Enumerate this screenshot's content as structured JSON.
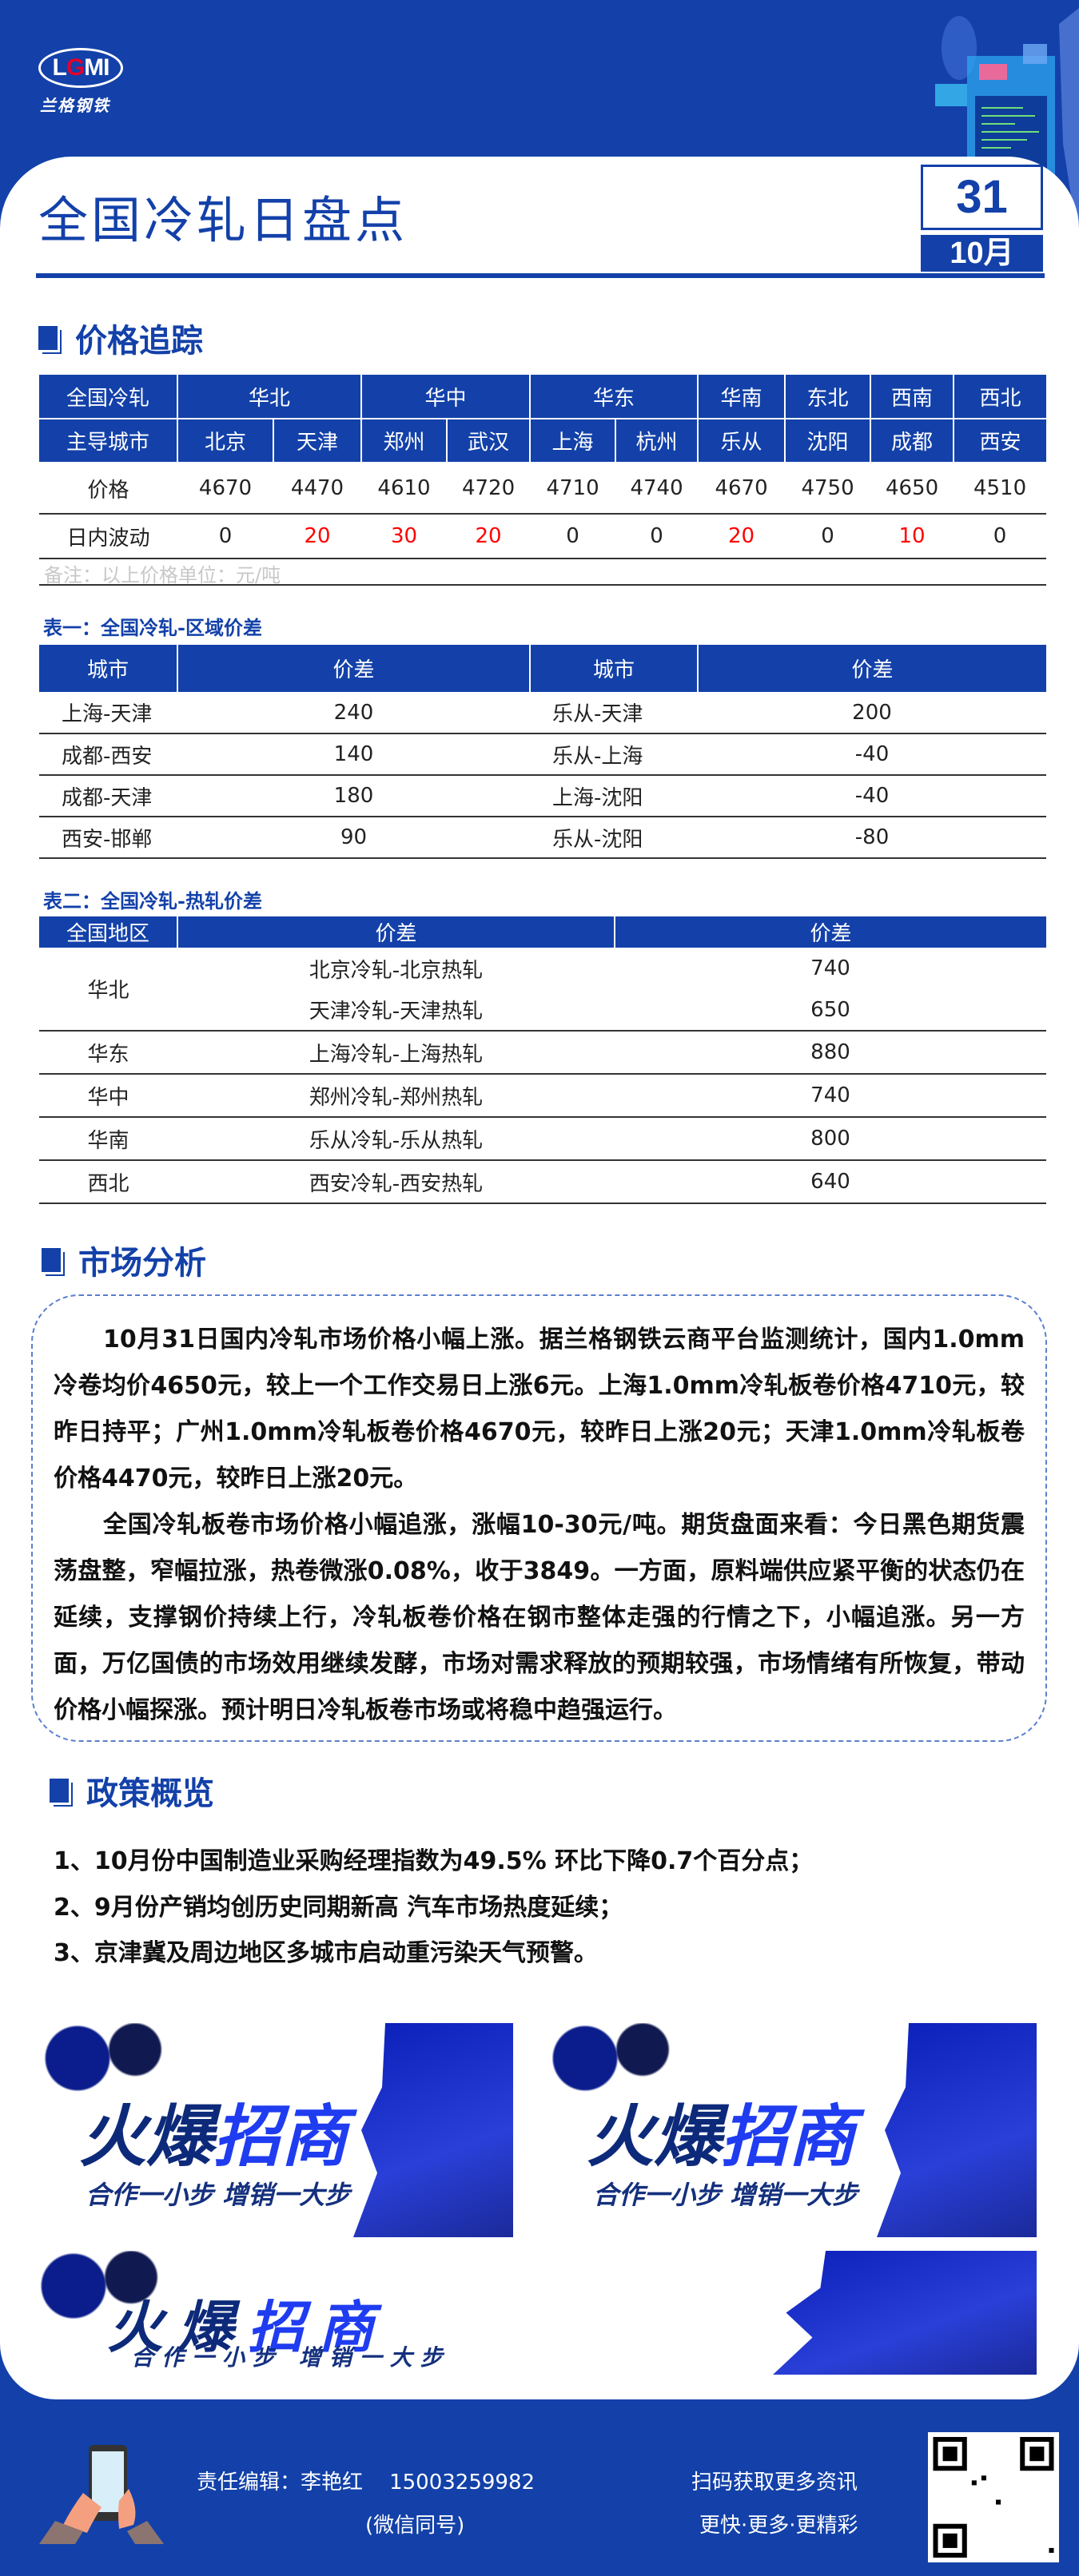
{
  "brand": {
    "logo_text": "LGMI",
    "logo_cn": "兰格钢铁"
  },
  "header": {
    "title": "全国冷轧日盘点",
    "day": "31",
    "month": "10月"
  },
  "colors": {
    "primary": "#1341a9",
    "bar_positive": "#d13a36",
    "bar_negative": "#00b050",
    "rise_text": "#ff0000"
  },
  "price_tracking": {
    "heading": "价格追踪",
    "row1_label": "全国冷轧",
    "regions": [
      {
        "name": "华北",
        "span": 2
      },
      {
        "name": "华中",
        "span": 2
      },
      {
        "name": "华东",
        "span": 2
      },
      {
        "name": "华南",
        "span": 1
      },
      {
        "name": "东北",
        "span": 1
      },
      {
        "name": "西南",
        "span": 1
      },
      {
        "name": "西北",
        "span": 1
      }
    ],
    "row2_label": "主导城市",
    "cities": [
      "北京",
      "天津",
      "郑州",
      "武汉",
      "上海",
      "杭州",
      "乐从",
      "沈阳",
      "成都",
      "西安"
    ],
    "price_label": "价格",
    "prices": [
      "4670",
      "4470",
      "4610",
      "4720",
      "4710",
      "4740",
      "4670",
      "4750",
      "4650",
      "4510"
    ],
    "change_label": "日内波动",
    "changes": [
      "0",
      "20",
      "30",
      "20",
      "0",
      "0",
      "20",
      "0",
      "10",
      "0"
    ],
    "note": "备注：以上价格单位：元/吨"
  },
  "table1": {
    "caption": "表一：全国冷轧-区域价差",
    "headers": [
      "城市",
      "价差",
      "城市",
      "价差"
    ],
    "left": [
      {
        "pair": "上海-天津",
        "value": 240
      },
      {
        "pair": "成都-西安",
        "value": 140
      },
      {
        "pair": "成都-天津",
        "value": 180
      },
      {
        "pair": "西安-邯郸",
        "value": 90
      }
    ],
    "right": [
      {
        "pair": "乐从-天津",
        "value": 200
      },
      {
        "pair": "乐从-上海",
        "value": -40
      },
      {
        "pair": "上海-沈阳",
        "value": -40
      },
      {
        "pair": "乐从-沈阳",
        "value": -80
      }
    ]
  },
  "table2": {
    "caption": "表二：全国冷轧-热轧价差",
    "headers": [
      "全国地区",
      "价差",
      "价差"
    ],
    "groups": [
      {
        "region": "华北",
        "rows": [
          {
            "item": "北京冷轧-北京热轧",
            "value": 740
          },
          {
            "item": "天津冷轧-天津热轧",
            "value": 650
          }
        ]
      },
      {
        "region": "华东",
        "rows": [
          {
            "item": "上海冷轧-上海热轧",
            "value": 880
          }
        ]
      },
      {
        "region": "华中",
        "rows": [
          {
            "item": "郑州冷轧-郑州热轧",
            "value": 740
          }
        ]
      },
      {
        "region": "华南",
        "rows": [
          {
            "item": "乐从冷轧-乐从热轧",
            "value": 800
          }
        ]
      },
      {
        "region": "西北",
        "rows": [
          {
            "item": "西安冷轧-西安热轧",
            "value": 640
          }
        ]
      }
    ]
  },
  "analysis": {
    "heading": "市场分析",
    "paragraphs": [
      "10月31日国内冷轧市场价格小幅上涨。据兰格钢铁云商平台监测统计，国内1.0mm冷卷均价4650元，较上一个工作交易日上涨6元。上海1.0mm冷轧板卷价格4710元，较昨日持平；广州1.0mm冷轧板卷价格4670元，较昨日上涨20元；天津1.0mm冷轧板卷价格4470元，较昨日上涨20元。",
      "全国冷轧板卷市场价格小幅追涨，涨幅10-30元/吨。期货盘面来看：今日黑色期货震荡盘整，窄幅拉涨，热卷微涨0.08%，收于3849。一方面，原料端供应紧平衡的状态仍在延续，支撑钢价持续上行，冷轧板卷价格在钢市整体走强的行情之下，小幅追涨。另一方面，万亿国债的市场效用继续发酵，市场对需求释放的预期较强，市场情绪有所恢复，带动价格小幅探涨。预计明日冷轧板卷市场或将稳中趋强运行。"
    ]
  },
  "policy": {
    "heading": "政策概览",
    "items": [
      "1、10月份中国制造业采购经理指数为49.5% 环比下降0.7个百分点；",
      "2、9月份产销均创历史同期新高 汽车市场热度延续；",
      "3、京津冀及周边地区多城市启动重污染天气预警。"
    ]
  },
  "banners": {
    "title_a": "火爆",
    "title_b": "招商",
    "slogan": "合作一小步  增销一大步"
  },
  "footer": {
    "editor": "责任编辑：李艳红",
    "phone": "15003259982",
    "wechat_note": "(微信同号)",
    "scan_text": "扫码获取更多资讯",
    "tagline": "更快·更多·更精彩"
  }
}
